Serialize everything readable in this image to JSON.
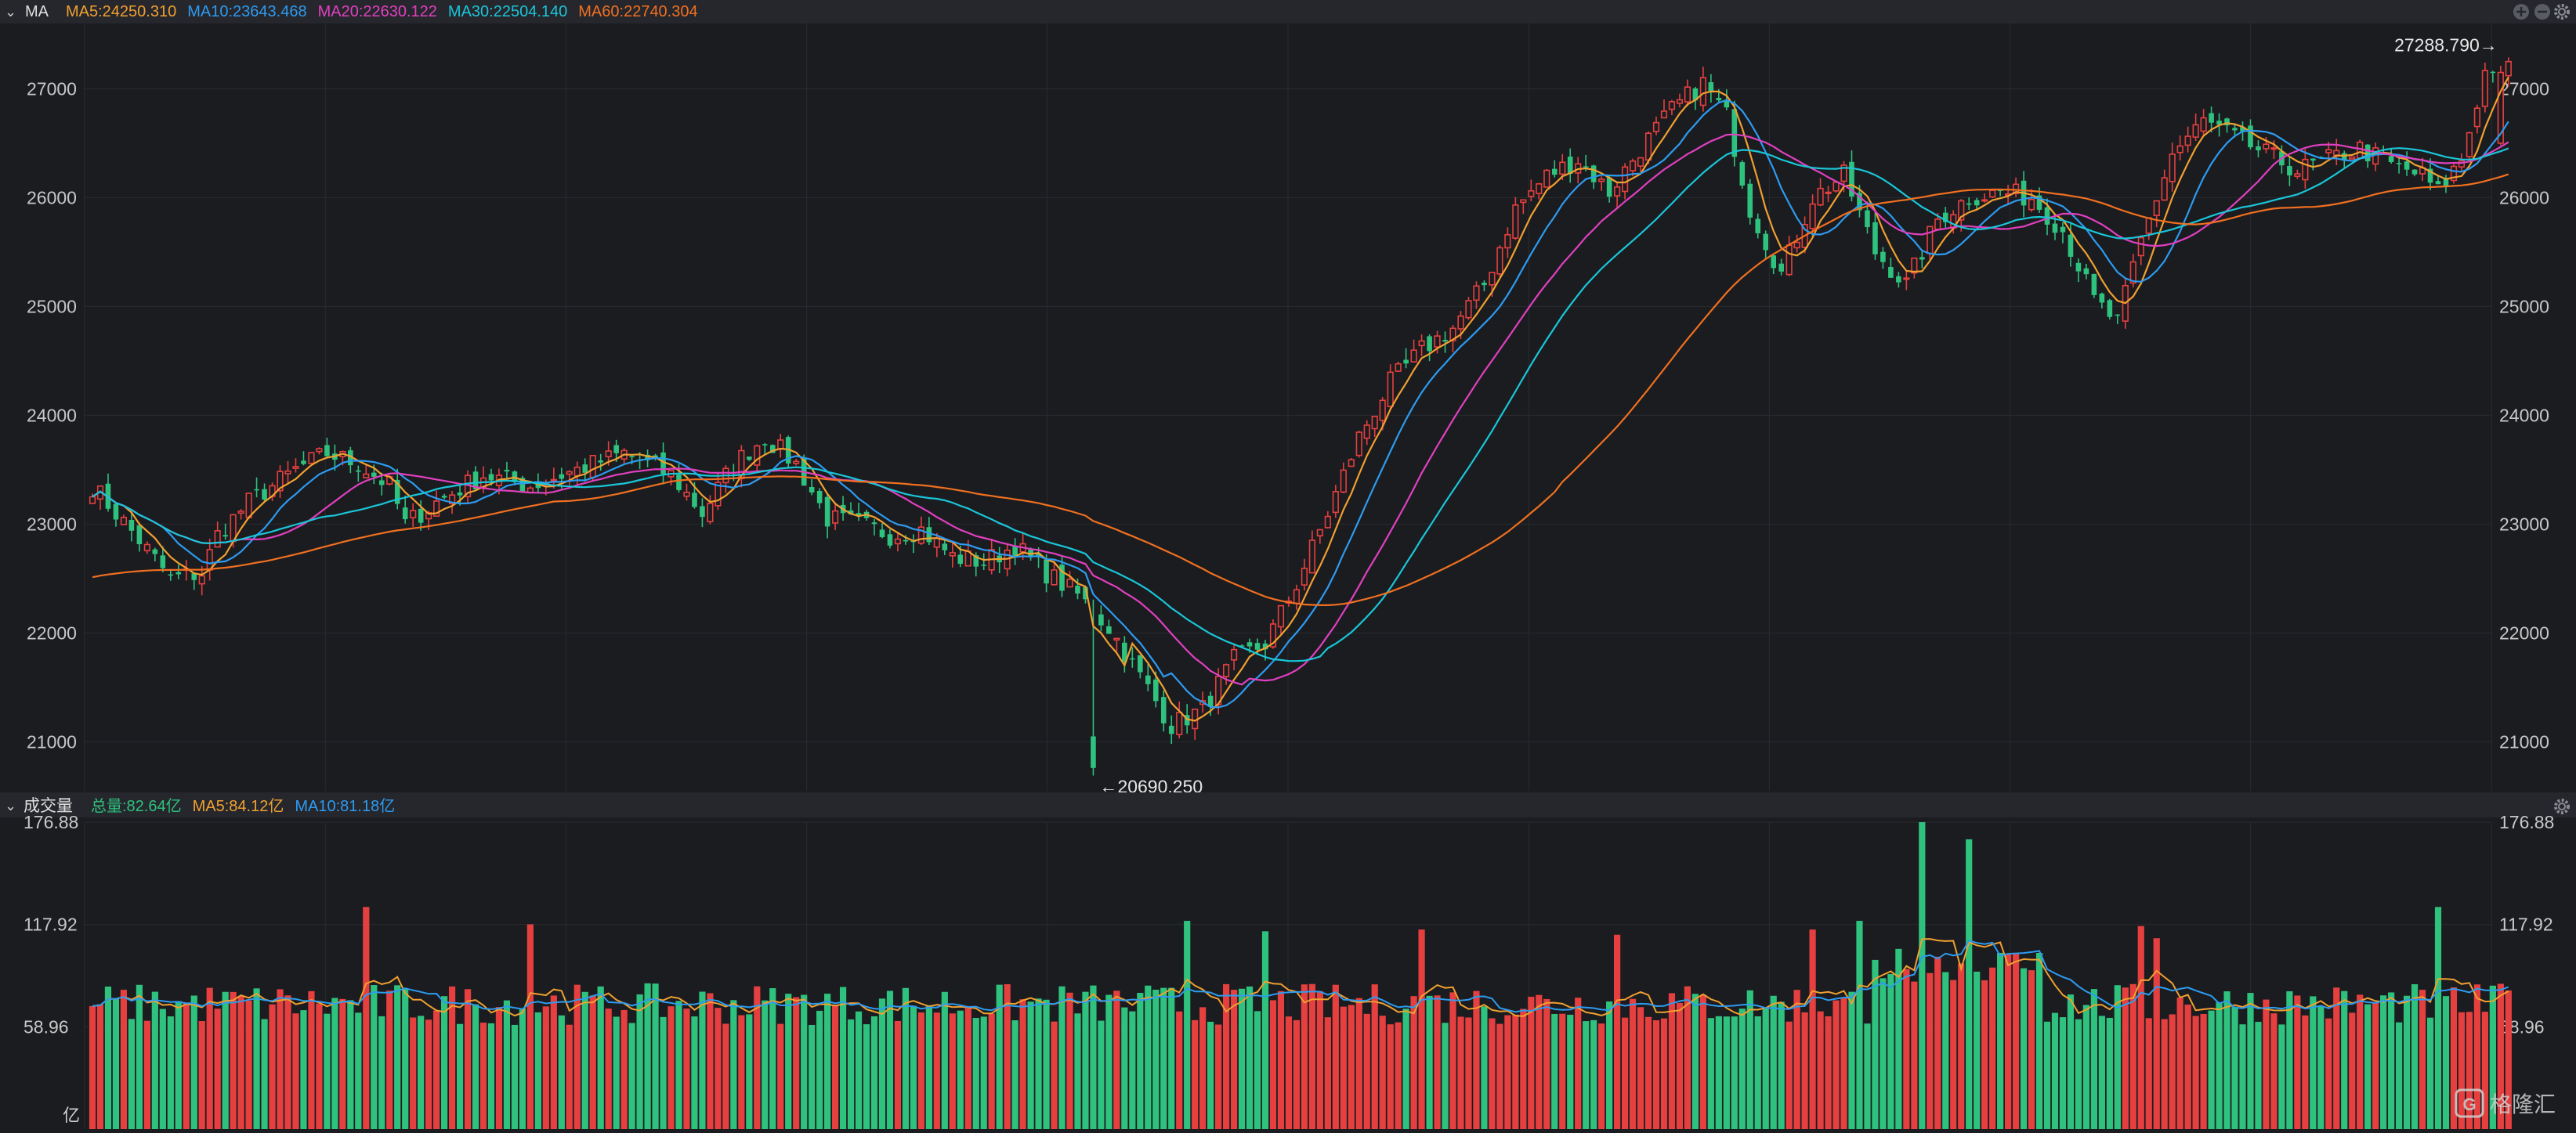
{
  "price_panel": {
    "collapse_glyph": "⌄",
    "indicator_name": "MA",
    "ma_legend": [
      {
        "text": "MA5:24250.310",
        "color": "#f0a030"
      },
      {
        "text": "MA10:23643.468",
        "color": "#2d9bf0"
      },
      {
        "text": "MA20:22630.122",
        "color": "#e040c0"
      },
      {
        "text": "MA30:22504.140",
        "color": "#19c6d8"
      },
      {
        "text": "MA60:22740.304",
        "color": "#f07020"
      }
    ],
    "high_annotation": "27288.790→",
    "low_annotation": "←20690.250",
    "icons": [
      "zoom-in-icon",
      "zoom-out-icon",
      "settings-icon"
    ]
  },
  "volume_panel": {
    "collapse_glyph": "⌄",
    "indicator_name": "成交量",
    "legend": [
      {
        "text": "总量:82.64亿",
        "color": "#2ec27e"
      },
      {
        "text": "MA5:84.12亿",
        "color": "#f0a030"
      },
      {
        "text": "MA10:81.18亿",
        "color": "#2d9bf0"
      }
    ],
    "unit_label": "亿",
    "icons": [
      "settings-icon"
    ]
  },
  "watermark": "格隆汇",
  "colors": {
    "background": "#1b1c20",
    "header": "#26272d",
    "up": "#e5403f",
    "down": "#2ec27e",
    "text": "#c8c8c8",
    "grid": "#2a2b31"
  },
  "chart_data": [
    {
      "type": "candlestick",
      "title": "",
      "y_ticks": [
        "27000",
        "26000",
        "25000",
        "24000",
        "23000",
        "22000",
        "21000"
      ],
      "ylim": [
        20550,
        27600
      ],
      "grid": true,
      "period_count": 275,
      "close_anchors": [
        [
          0,
          23350
        ],
        [
          6,
          22850
        ],
        [
          10,
          22500
        ],
        [
          14,
          22550
        ],
        [
          16,
          22900
        ],
        [
          20,
          23200
        ],
        [
          26,
          23500
        ],
        [
          30,
          23650
        ],
        [
          34,
          23550
        ],
        [
          38,
          23350
        ],
        [
          40,
          23000
        ],
        [
          44,
          23200
        ],
        [
          50,
          23450
        ],
        [
          56,
          23350
        ],
        [
          62,
          23500
        ],
        [
          68,
          23650
        ],
        [
          74,
          23450
        ],
        [
          78,
          23100
        ],
        [
          82,
          23550
        ],
        [
          86,
          23800
        ],
        [
          90,
          23550
        ],
        [
          94,
          23050
        ],
        [
          98,
          23000
        ],
        [
          102,
          22900
        ],
        [
          106,
          22950
        ],
        [
          110,
          22700
        ],
        [
          114,
          22650
        ],
        [
          118,
          22800
        ],
        [
          122,
          22550
        ],
        [
          126,
          22350
        ],
        [
          130,
          22050
        ],
        [
          134,
          21600
        ],
        [
          138,
          21150
        ],
        [
          142,
          21300
        ],
        [
          146,
          21750
        ],
        [
          150,
          21900
        ],
        [
          154,
          22450
        ],
        [
          158,
          23100
        ],
        [
          162,
          23800
        ],
        [
          166,
          24300
        ],
        [
          170,
          24600
        ],
        [
          174,
          24800
        ],
        [
          178,
          25200
        ],
        [
          182,
          25900
        ],
        [
          186,
          26200
        ],
        [
          190,
          26350
        ],
        [
          194,
          26050
        ],
        [
          198,
          26450
        ],
        [
          202,
          26800
        ],
        [
          206,
          27050
        ],
        [
          209,
          26750
        ],
        [
          212,
          25900
        ],
        [
          216,
          25300
        ],
        [
          220,
          26000
        ],
        [
          224,
          26200
        ],
        [
          228,
          25500
        ],
        [
          232,
          25200
        ],
        [
          236,
          25800
        ],
        [
          240,
          26000
        ],
        [
          244,
          26050
        ],
        [
          248,
          26000
        ],
        [
          252,
          25700
        ],
        [
          256,
          25050
        ],
        [
          259,
          24850
        ],
        [
          262,
          25600
        ],
        [
          266,
          26400
        ],
        [
          270,
          26700
        ],
        [
          274,
          26550
        ],
        [
          278,
          26400
        ],
        [
          282,
          26250
        ],
        [
          286,
          26350
        ],
        [
          290,
          26450
        ],
        [
          294,
          26300
        ],
        [
          298,
          26200
        ],
        [
          300,
          26050
        ],
        [
          303,
          26350
        ],
        [
          306,
          27150
        ],
        [
          308,
          27250
        ]
      ],
      "volatility": 110,
      "seed": 7,
      "ma_lines": [
        {
          "name": "MA5",
          "period": 5,
          "color": "#f0a030"
        },
        {
          "name": "MA10",
          "period": 10,
          "color": "#2d9bf0"
        },
        {
          "name": "MA20",
          "period": 20,
          "color": "#e040c0"
        },
        {
          "name": "MA30",
          "period": 30,
          "color": "#19c6d8"
        },
        {
          "name": "MA60",
          "period": 60,
          "color": "#f07020"
        }
      ],
      "ma60_start": 22500,
      "high": 27288.79,
      "low": 20690.25
    },
    {
      "type": "bar",
      "title": "",
      "y_ticks": [
        "176.88",
        "117.92",
        "58.96"
      ],
      "ylim": [
        0,
        176.88
      ],
      "unit": "亿",
      "typical_volume": 72,
      "spikes": [
        [
          35,
          128
        ],
        [
          56,
          118
        ],
        [
          140,
          120
        ],
        [
          150,
          114
        ],
        [
          170,
          115
        ],
        [
          195,
          112
        ],
        [
          220,
          115
        ],
        [
          226,
          120
        ],
        [
          234,
          176.88
        ],
        [
          240,
          167
        ],
        [
          244,
          98
        ],
        [
          262,
          117
        ],
        [
          264,
          110
        ],
        [
          300,
          128
        ],
        [
          307,
          82.64
        ]
      ],
      "ma_lines": [
        {
          "name": "MA5",
          "period": 5,
          "color": "#f0a030"
        },
        {
          "name": "MA10",
          "period": 10,
          "color": "#2d9bf0"
        }
      ]
    }
  ]
}
